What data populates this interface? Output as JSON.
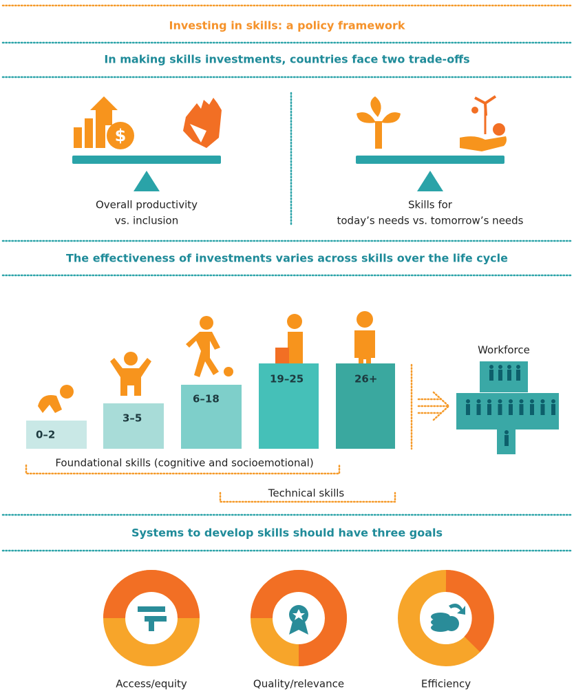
{
  "header": {
    "title": "Investing in skills: a policy framework"
  },
  "tradeoffs": {
    "heading": "In making skills investments, countries face two trade-offs",
    "items": [
      {
        "lines": [
          "Overall productivity",
          "vs. inclusion"
        ]
      },
      {
        "lines": [
          "Skills for",
          "today’s needs vs. tomorrow’s needs"
        ]
      }
    ]
  },
  "life_cycle": {
    "heading": "The effectiveness of investments varies across skills over the life cycle",
    "stages": [
      "0–2",
      "3–5",
      "6–18",
      "19–25",
      "26+"
    ],
    "workforce": "Workforce",
    "foundational": "Foundational skills (cognitive and socioemotional)",
    "technical": "Technical skills"
  },
  "goals": {
    "heading": "Systems to develop skills should have three goals",
    "items": [
      "Access/equity",
      "Quality/relevance",
      "Efficiency"
    ]
  }
}
